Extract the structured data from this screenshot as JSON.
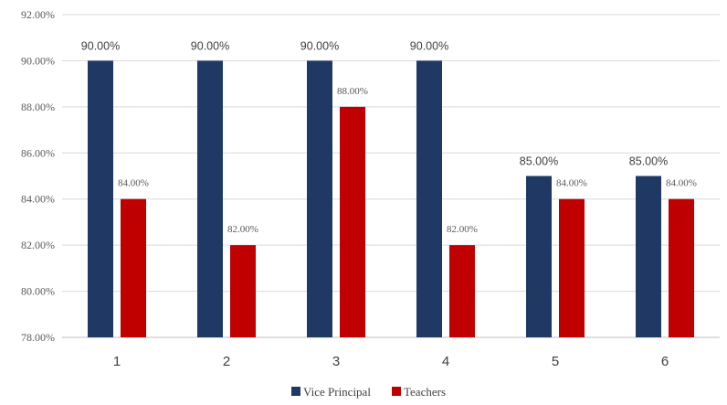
{
  "chart_data": {
    "type": "bar",
    "title": "",
    "xlabel": "",
    "ylabel": "",
    "categories": [
      "1",
      "2",
      "3",
      "4",
      "5",
      "6"
    ],
    "series": [
      {
        "name": "Vice Principal",
        "color": "#1f3864",
        "values": [
          90,
          90,
          90,
          90,
          85,
          85
        ],
        "labels": [
          "90.00%",
          "90.00%",
          "90.00%",
          "90.00%",
          "85.00%",
          "85.00%"
        ]
      },
      {
        "name": "Teachers",
        "color": "#c00000",
        "values": [
          84,
          82,
          88,
          82,
          84,
          84
        ],
        "labels": [
          "84.00%",
          "82.00%",
          "88.00%",
          "82.00%",
          "84.00%",
          "84.00%"
        ]
      }
    ],
    "ylim": [
      78,
      92
    ],
    "yticks": [
      78,
      80,
      82,
      84,
      86,
      88,
      90,
      92
    ],
    "ytick_labels": [
      "78.00%",
      "80.00%",
      "82.00%",
      "84.00%",
      "86.00%",
      "88.00%",
      "90.00%",
      "92.00%"
    ],
    "grid": true,
    "gridline_color": "#d9d9d9",
    "legend_position": "bottom-center"
  }
}
